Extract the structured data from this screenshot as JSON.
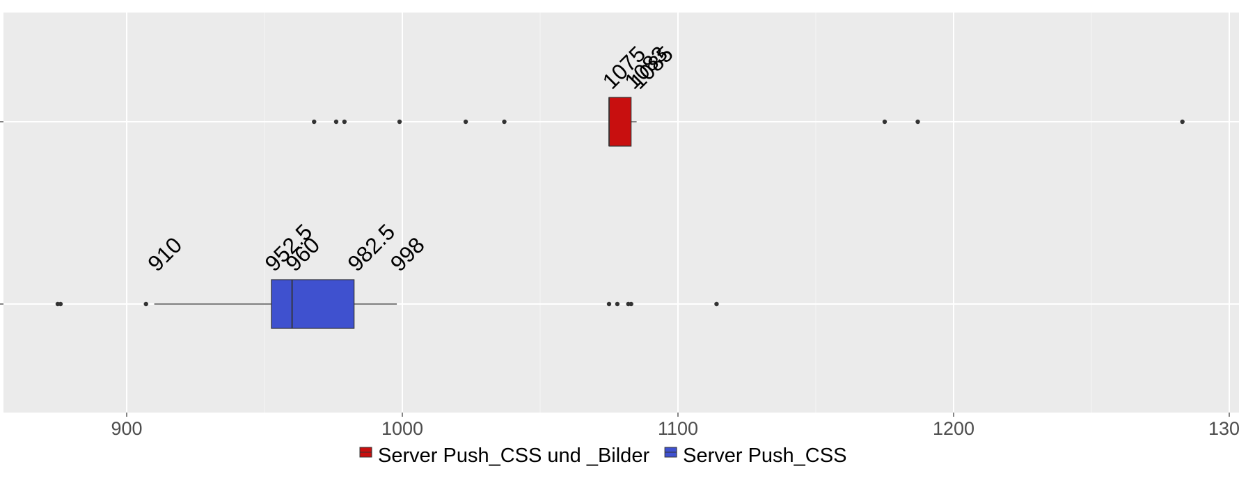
{
  "chart_data": {
    "type": "boxplot",
    "orientation": "horizontal",
    "x_ticks": [
      900,
      1000,
      1100,
      1200,
      1300
    ],
    "x_tick_labels": [
      "900",
      "1000",
      "1100",
      "1200",
      "1300"
    ],
    "x_minor_ticks": [
      950,
      1050,
      1150,
      1250
    ],
    "xlim": [
      855,
      1305
    ],
    "grid": true,
    "legend_position": "bottom",
    "series": [
      {
        "name": "Server Push_CSS und _Bilder",
        "color": "#C80F0F",
        "lower_whisker": 1075,
        "q1": 1075,
        "median": 1075,
        "q3": 1083,
        "upper_whisker": 1085,
        "outliers": [
          968,
          976,
          979,
          999,
          1023,
          1037,
          1175,
          1187,
          1283
        ],
        "annotations": [
          "1075",
          "1083",
          "1085"
        ],
        "annotation_values": [
          1075,
          1083,
          1085
        ]
      },
      {
        "name": "Server Push_CSS",
        "color": "#3F51CF",
        "lower_whisker": 910,
        "q1": 952.5,
        "median": 960,
        "q3": 982.5,
        "upper_whisker": 998,
        "outliers": [
          875,
          876,
          907,
          1075,
          1078,
          1082,
          1083,
          1114
        ],
        "annotations": [
          "910",
          "952.5",
          "960",
          "982.5",
          "998"
        ],
        "annotation_values": [
          910,
          952.5,
          960,
          982.5,
          998
        ]
      }
    ]
  }
}
